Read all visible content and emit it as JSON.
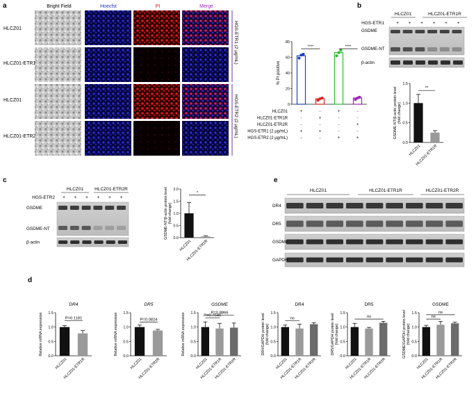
{
  "panels": {
    "a": "a",
    "b": "b",
    "c": "c",
    "d": "d",
    "e": "e"
  },
  "a": {
    "col_headers": [
      "Bright Field",
      "Hoecfst",
      "PI",
      "Merge"
    ],
    "row_labels": [
      "HLCZ01",
      "HLCZ01-ETR1R",
      "HLCZ01",
      "HLCZ01-ETR2R"
    ],
    "side_labels": [
      "HGS-ETR1 (2 μg/mL)",
      "HGS-ETR2 (2 μg/mL)"
    ],
    "chart": {
      "ylabel": "% PI positive",
      "yticks": [
        "0",
        "20",
        "40",
        "60",
        "80"
      ],
      "sig": [
        "****",
        "****"
      ],
      "table_rows": [
        {
          "label": "HLCZ01",
          "signs": [
            "+",
            "-",
            "+",
            "-"
          ]
        },
        {
          "label": "HLCZ01-ETR1R",
          "signs": [
            "-",
            "+",
            "-",
            "-"
          ]
        },
        {
          "label": "HLCZ01-ETR2R",
          "signs": [
            "-",
            "-",
            "-",
            "+"
          ]
        },
        {
          "label": "HGS-ETR1 (2 μg/mL)",
          "signs": [
            "+",
            "+",
            "-",
            "-"
          ]
        },
        {
          "label": "HGS-ETR2 (2 μg/mL)",
          "signs": [
            "-",
            "-",
            "+",
            "+"
          ]
        }
      ]
    }
  },
  "b": {
    "groups": [
      "HLCZ01",
      "HLCZ01-ETR1R"
    ],
    "treat_label": "HGS-ETR1",
    "signs": [
      "+",
      "+",
      "+",
      "+",
      "+",
      "+"
    ],
    "bands": [
      "GSDME",
      "GSDME-NT",
      "β-actin"
    ],
    "chart": {
      "ylabel": "GSDME-NT/β-actin protein level (fold change)",
      "yticks": [
        "0.0",
        "0.5",
        "1.0",
        "1.5"
      ],
      "categories": [
        "HLCZ01",
        "HLCZ01-ETR1R"
      ],
      "sig": "**"
    }
  },
  "c": {
    "groups": [
      "HLCZ01",
      "HLCZ01-ETR2R"
    ],
    "treat_label": "HGS-ETR2",
    "signs": [
      "+",
      "+",
      "+",
      "+",
      "+",
      "+"
    ],
    "bands": [
      "GSDME",
      "GSDME-NT",
      "β-actin"
    ],
    "chart": {
      "ylabel": "GSDME-NT/β-actin protein level",
      "yticks": [
        "0.0",
        "0.5",
        "1.0",
        "1.5",
        "2.0"
      ],
      "categories": [
        "HLCZ01",
        "HLCZ01-ETR2R"
      ],
      "sig": "*"
    }
  },
  "e": {
    "groups": [
      "HLCZ01",
      "HLCZ01-ETR1R",
      "HLCZ01-ETR2R"
    ],
    "bands": [
      "DR4",
      "DR5",
      "GSDME",
      "GAPDH"
    ]
  },
  "d_charts": [
    {
      "title": "DR4",
      "italic": true,
      "ylabel": "Relative mRNA expression",
      "yticks": [
        "0.0",
        "0.5",
        "1.0",
        "1.5"
      ],
      "categories": [
        "HLCZ01",
        "HLCZ01-ETR1R"
      ],
      "annotations": [
        "P=0.1181"
      ]
    },
    {
      "title": "DR5",
      "italic": true,
      "ylabel": "Relative mRNA expression",
      "yticks": [
        "0.0",
        "0.5",
        "1.0",
        "1.5"
      ],
      "categories": [
        "HLCZ01",
        "HLCZ01-ETR2R"
      ],
      "annotations": [
        "P=0.0824"
      ]
    },
    {
      "title": "GSDME",
      "italic": true,
      "ylabel": "Relative mRNA expression",
      "yticks": [
        "0.0",
        "0.5",
        "1.0",
        "1.5"
      ],
      "categories": [
        "HLCZ01",
        "HLCZ01-ETR1R",
        "HLCZ01-ETR2R"
      ],
      "annotations": [
        "P=0.7646",
        "P=0.8866"
      ]
    },
    {
      "title": "DR4",
      "italic": false,
      "ylabel": "DR4/GAPDH protein level (fold change)",
      "yticks": [
        "0.0",
        "0.5",
        "1.0",
        "1.5"
      ],
      "categories": [
        "HLCZ01",
        "HLCZ01-ETR1R",
        "HLCZ01-ETR2R"
      ],
      "annotations": [
        "ns"
      ]
    },
    {
      "title": "DR5",
      "italic": false,
      "ylabel": "DR5/GAPDH protein level (fold change)",
      "yticks": [
        "0.0",
        "0.5",
        "1.0",
        "1.5"
      ],
      "categories": [
        "HLCZ01",
        "HLCZ01-ETR1R",
        "HLCZ01-ETR2R"
      ],
      "annotations": [
        "ns"
      ]
    },
    {
      "title": "GSDME",
      "italic": false,
      "ylabel": "GSDME/GAPDH protein level (fold change)",
      "yticks": [
        "0.0",
        "0.5",
        "1.0",
        "1.5"
      ],
      "categories": [
        "HLCZ01",
        "HLCZ01-ETR1R",
        "HLCZ01-ETR2R"
      ],
      "annotations": [
        "ns",
        "ns"
      ]
    }
  ],
  "chart_data": [
    {
      "type": "bar",
      "id": "a-pi",
      "categories": [
        "HLCZ01 + HGS-ETR1",
        "HLCZ01-ETR1R + HGS-ETR1",
        "HLCZ01 + HGS-ETR2",
        "HLCZ01-ETR2R + HGS-ETR2"
      ],
      "values": [
        62,
        7,
        66,
        8
      ],
      "colors": [
        "#1f3fbf",
        "#e02020",
        "#2eb82e",
        "#a020c0"
      ],
      "points": [
        [
          59,
          63,
          64
        ],
        [
          5,
          7,
          8
        ],
        [
          62,
          66,
          69
        ],
        [
          6,
          8,
          9
        ]
      ],
      "ylim": [
        0,
        80
      ]
    },
    {
      "type": "bar",
      "id": "b-quant",
      "categories": [
        "HLCZ01",
        "HLCZ01-ETR1R"
      ],
      "values": [
        1.0,
        0.25
      ],
      "errors": [
        0.22,
        0.05
      ],
      "colors": [
        "#111111",
        "#9a9a9a"
      ],
      "ylim": [
        0,
        1.5
      ]
    },
    {
      "type": "bar",
      "id": "c-quant",
      "categories": [
        "HLCZ01",
        "HLCZ01-ETR2R"
      ],
      "values": [
        1.0,
        0.05
      ],
      "errors": [
        0.45,
        0.03
      ],
      "colors": [
        "#111111",
        "#9a9a9a"
      ],
      "ylim": [
        0,
        2.0
      ]
    },
    {
      "type": "bar",
      "id": "d-dr4-mrna",
      "categories": [
        "HLCZ01",
        "HLCZ01-ETR1R"
      ],
      "values": [
        1.0,
        0.78
      ],
      "errors": [
        0.05,
        0.1
      ],
      "colors": [
        "#111111",
        "#9a9a9a"
      ],
      "ylim": [
        0,
        1.5
      ]
    },
    {
      "type": "bar",
      "id": "d-dr5-mrna",
      "categories": [
        "HLCZ01",
        "HLCZ01-ETR2R"
      ],
      "values": [
        1.0,
        0.88
      ],
      "errors": [
        0.07,
        0.04
      ],
      "colors": [
        "#111111",
        "#9a9a9a"
      ],
      "ylim": [
        0,
        1.5
      ]
    },
    {
      "type": "bar",
      "id": "d-gsdme-mrna",
      "categories": [
        "HLCZ01",
        "HLCZ01-ETR1R",
        "HLCZ01-ETR2R"
      ],
      "values": [
        1.0,
        0.95,
        0.98
      ],
      "errors": [
        0.18,
        0.18,
        0.16
      ],
      "colors": [
        "#111111",
        "#9a9a9a",
        "#6b6b6b"
      ],
      "ylim": [
        0,
        1.5
      ]
    },
    {
      "type": "bar",
      "id": "d-dr4-protein",
      "categories": [
        "HLCZ01",
        "HLCZ01-ETR1R",
        "HLCZ01-ETR2R"
      ],
      "values": [
        1.0,
        0.95,
        1.1
      ],
      "errors": [
        0.07,
        0.15,
        0.05
      ],
      "colors": [
        "#111111",
        "#9a9a9a",
        "#6b6b6b"
      ],
      "ylim": [
        0,
        1.5
      ]
    },
    {
      "type": "bar",
      "id": "d-dr5-protein",
      "categories": [
        "HLCZ01",
        "HLCZ01-ETR1R",
        "HLCZ01-ETR2R"
      ],
      "values": [
        1.0,
        0.95,
        1.15
      ],
      "errors": [
        0.13,
        0.04,
        0.05
      ],
      "colors": [
        "#111111",
        "#9a9a9a",
        "#6b6b6b"
      ],
      "ylim": [
        0,
        1.5
      ]
    },
    {
      "type": "bar",
      "id": "d-gsdme-protein",
      "categories": [
        "HLCZ01",
        "HLCZ01-ETR1R",
        "HLCZ01-ETR2R"
      ],
      "values": [
        1.0,
        1.08,
        1.13
      ],
      "errors": [
        0.06,
        0.12,
        0.04
      ],
      "colors": [
        "#111111",
        "#9a9a9a",
        "#6b6b6b"
      ],
      "ylim": [
        0,
        1.5
      ]
    }
  ]
}
